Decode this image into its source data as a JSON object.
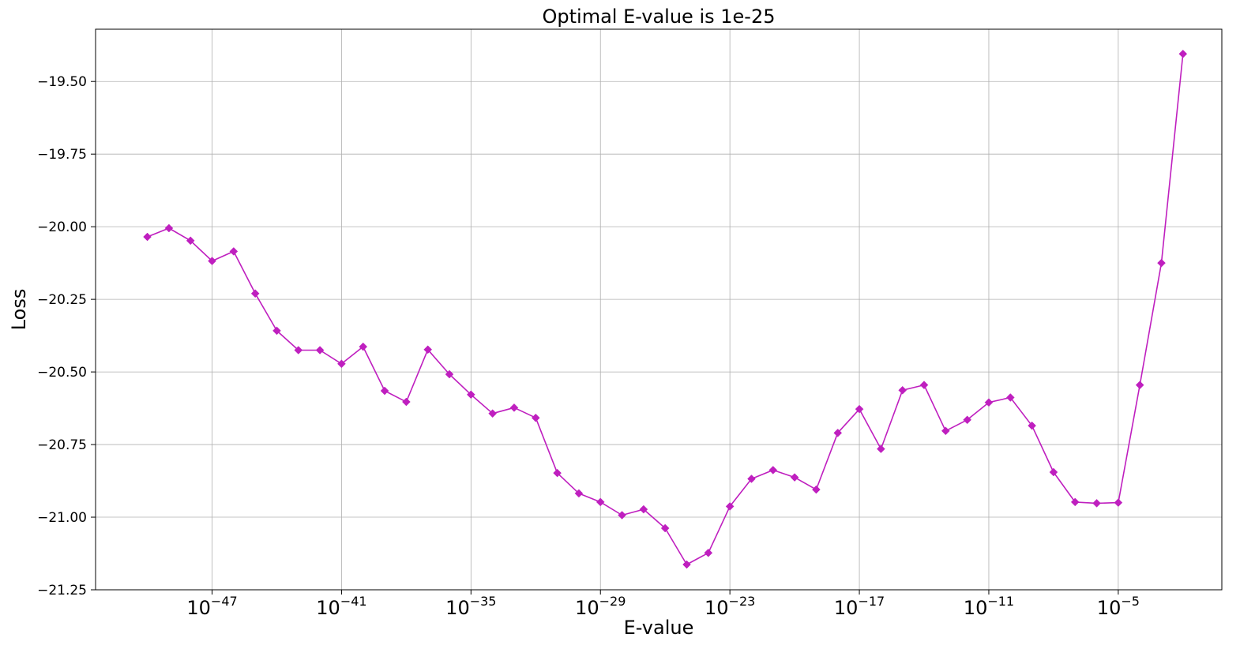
{
  "chart_data": {
    "type": "line",
    "title": "Optimal E-value is 1e-25",
    "xlabel": "E-value",
    "ylabel": "Loss",
    "x_scale": "log",
    "xlim_exponent": [
      -52.4,
      -0.2
    ],
    "ylim": [
      -21.25,
      -19.32
    ],
    "grid": true,
    "legend": "none",
    "series_color": "#bf1fbf",
    "marker": "diamond",
    "x_ticks": [
      {
        "base": "10",
        "exp": "−47",
        "exponent": -47
      },
      {
        "base": "10",
        "exp": "−41",
        "exponent": -41
      },
      {
        "base": "10",
        "exp": "−35",
        "exponent": -35
      },
      {
        "base": "10",
        "exp": "−29",
        "exponent": -29
      },
      {
        "base": "10",
        "exp": "−23",
        "exponent": -23
      },
      {
        "base": "10",
        "exp": "−17",
        "exponent": -17
      },
      {
        "base": "10",
        "exp": "−11",
        "exponent": -11
      },
      {
        "base": "10",
        "exp": "−5",
        "exponent": -5
      }
    ],
    "y_ticks": [
      {
        "value": -19.5,
        "label": "−19.50"
      },
      {
        "value": -19.75,
        "label": "−19.75"
      },
      {
        "value": -20.0,
        "label": "−20.00"
      },
      {
        "value": -20.25,
        "label": "−20.25"
      },
      {
        "value": -20.5,
        "label": "−20.50"
      },
      {
        "value": -20.75,
        "label": "−20.75"
      },
      {
        "value": -21.0,
        "label": "−21.00"
      },
      {
        "value": -21.25,
        "label": "−21.25"
      }
    ],
    "series": [
      {
        "x_exponent": [
          -50,
          -49,
          -48,
          -47,
          -46,
          -45,
          -44,
          -43,
          -42,
          -41,
          -40,
          -39,
          -38,
          -37,
          -36,
          -35,
          -34,
          -33,
          -32,
          -31,
          -30,
          -29,
          -28,
          -27,
          -26,
          -25,
          -24,
          -23,
          -22,
          -21,
          -20,
          -19,
          -18,
          -17,
          -16,
          -15,
          -14,
          -13,
          -12,
          -11,
          -10,
          -9,
          -8,
          -7,
          -6,
          -5,
          -4,
          -3,
          -2
        ],
        "y": [
          -20.035,
          -20.005,
          -20.048,
          -20.118,
          -20.085,
          -20.23,
          -20.358,
          -20.425,
          -20.425,
          -20.472,
          -20.413,
          -20.565,
          -20.603,
          -20.423,
          -20.508,
          -20.578,
          -20.643,
          -20.623,
          -20.658,
          -20.848,
          -20.918,
          -20.948,
          -20.993,
          -20.973,
          -21.038,
          -21.163,
          -21.123,
          -20.963,
          -20.868,
          -20.838,
          -20.863,
          -20.905,
          -20.71,
          -20.628,
          -20.765,
          -20.563,
          -20.545,
          -20.703,
          -20.665,
          -20.605,
          -20.588,
          -20.685,
          -20.845,
          -20.948,
          -20.952,
          -20.95,
          -20.545,
          -20.125,
          -19.405
        ]
      }
    ]
  }
}
